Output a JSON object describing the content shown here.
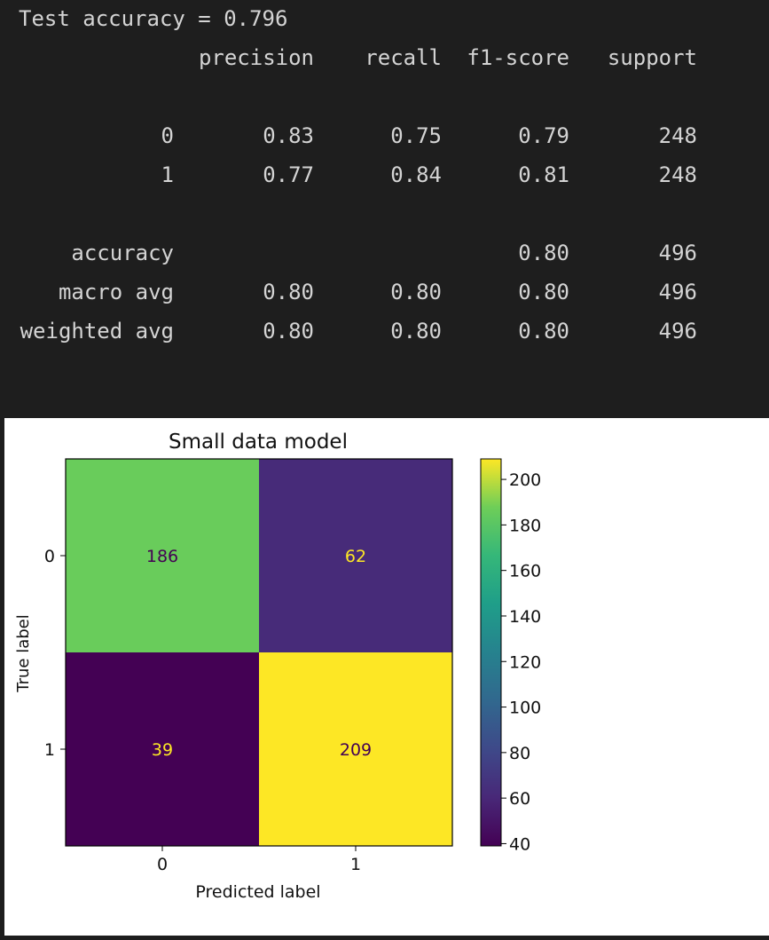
{
  "console": {
    "accuracy_line": "Test accuracy = 0.796",
    "report": {
      "headers": [
        "precision",
        "recall",
        "f1-score",
        "support"
      ],
      "rows": [
        {
          "label": "0",
          "cells": [
            "0.83",
            "0.75",
            "0.79",
            "248"
          ]
        },
        {
          "label": "1",
          "cells": [
            "0.77",
            "0.84",
            "0.81",
            "248"
          ]
        },
        {
          "label": "accuracy",
          "cells": [
            "",
            "",
            "0.80",
            "496"
          ]
        },
        {
          "label": "macro avg",
          "cells": [
            "0.80",
            "0.80",
            "0.80",
            "496"
          ]
        },
        {
          "label": "weighted avg",
          "cells": [
            "0.80",
            "0.80",
            "0.80",
            "496"
          ]
        }
      ]
    }
  },
  "chart_data": {
    "type": "heatmap",
    "title": "Small data model",
    "xlabel": "Predicted label",
    "ylabel": "True label",
    "x_categories": [
      "0",
      "1"
    ],
    "y_categories": [
      "0",
      "1"
    ],
    "matrix": [
      [
        186,
        62
      ],
      [
        39,
        209
      ]
    ],
    "colorbar": {
      "colormap": "viridis",
      "range": [
        39,
        209
      ],
      "ticks": [
        40,
        60,
        80,
        100,
        120,
        140,
        160,
        180,
        200
      ]
    },
    "grid": false
  }
}
